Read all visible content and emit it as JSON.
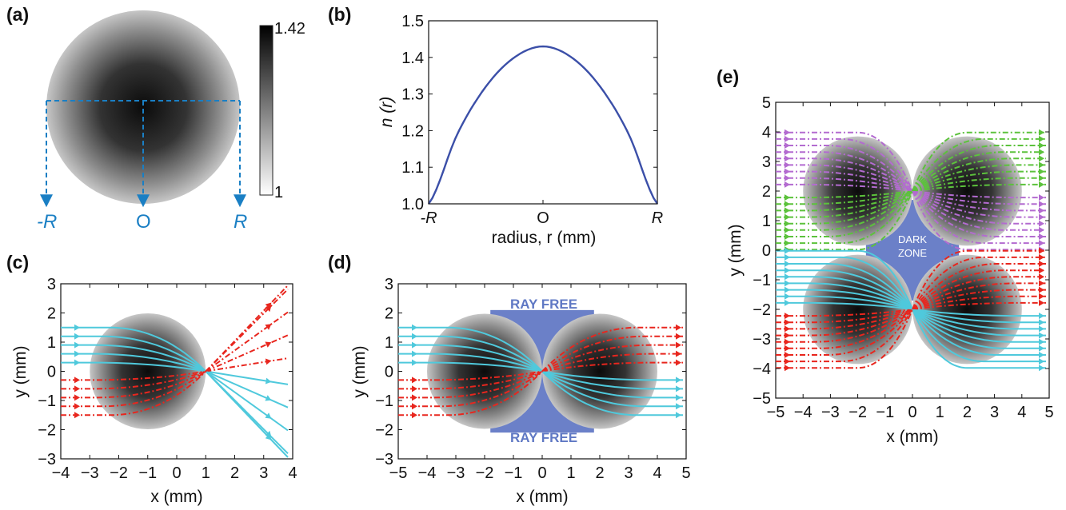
{
  "panels": {
    "a": {
      "label": "(a)",
      "colorbar": {
        "max": "1.42",
        "min": "1"
      },
      "markers": [
        "-R",
        "O",
        "R"
      ]
    },
    "b": {
      "label": "(b)"
    },
    "c": {
      "label": "(c)"
    },
    "d": {
      "label": "(d)",
      "annotation": "RAY FREE"
    },
    "e": {
      "label": "(e)",
      "annotation_line1": "DARK",
      "annotation_line2": "ZONE"
    }
  },
  "chart_data": [
    {
      "panel": "b",
      "type": "line",
      "xlabel": "radius, r (mm)",
      "ylabel": "n (r)",
      "x_ticks": [
        "-R",
        "O",
        "R"
      ],
      "y_ticks": [
        "1.0",
        "1.1",
        "1.2",
        "1.3",
        "1.4",
        "1.5"
      ],
      "ylim": [
        1.0,
        1.5
      ],
      "series": [
        {
          "x": [
            -1,
            -0.75,
            -0.5,
            -0.25,
            0,
            0.25,
            0.5,
            0.75,
            1
          ],
          "y": [
            1.0,
            1.19,
            1.32,
            1.4,
            1.43,
            1.4,
            1.32,
            1.19,
            1.0
          ]
        }
      ],
      "line_color": "#3b4fa8"
    },
    {
      "panel": "c",
      "type": "line",
      "xlabel": "x (mm)",
      "ylabel": "y (mm)",
      "x_ticks": [
        "-4",
        "-3",
        "-2",
        "-1",
        "0",
        "1",
        "2",
        "3",
        "4"
      ],
      "y_ticks": [
        "3",
        "2",
        "1",
        "0",
        "-1",
        "-2",
        "-3"
      ],
      "xlim": [
        -4,
        4
      ],
      "ylim": [
        -3,
        3
      ],
      "lens": {
        "center": [
          -1,
          0
        ],
        "radius": 2
      },
      "colors": {
        "cyan": "#4fc9dc",
        "red": "#e8261e"
      }
    },
    {
      "panel": "d",
      "type": "line",
      "xlabel": "x (mm)",
      "ylabel": "y (mm)",
      "x_ticks": [
        "-5",
        "-4",
        "-3",
        "-2",
        "-1",
        "0",
        "1",
        "2",
        "3",
        "4",
        "5"
      ],
      "y_ticks": [
        "3",
        "2",
        "1",
        "0",
        "-1",
        "-2",
        "-3"
      ],
      "xlim": [
        -5,
        5
      ],
      "ylim": [
        -3,
        3
      ],
      "lenses": [
        {
          "center": [
            -2,
            0
          ],
          "radius": 2
        },
        {
          "center": [
            2,
            0
          ],
          "radius": 2
        }
      ],
      "colors": {
        "cyan": "#4fc9dc",
        "red": "#e8261e",
        "fill": "#6b80c8"
      }
    },
    {
      "panel": "e",
      "type": "line",
      "xlabel": "x (mm)",
      "ylabel": "y (mm)",
      "x_ticks": [
        "-5",
        "-4",
        "-3",
        "-2",
        "-1",
        "0",
        "1",
        "2",
        "3",
        "4",
        "5"
      ],
      "y_ticks": [
        "5",
        "4",
        "3",
        "2",
        "1",
        "0",
        "-1",
        "-2",
        "-3",
        "-4",
        "-5"
      ],
      "xlim": [
        -5,
        5
      ],
      "ylim": [
        -5,
        5
      ],
      "lenses": [
        {
          "center": [
            -2,
            2
          ],
          "radius": 2
        },
        {
          "center": [
            2,
            2
          ],
          "radius": 2
        },
        {
          "center": [
            -2,
            -2
          ],
          "radius": 2
        },
        {
          "center": [
            2,
            -2
          ],
          "radius": 2
        }
      ],
      "colors": {
        "cyan": "#4fc9dc",
        "red": "#e8261e",
        "green": "#5cc23c",
        "purple": "#b36bd0",
        "fill": "#6b80c8"
      }
    }
  ]
}
